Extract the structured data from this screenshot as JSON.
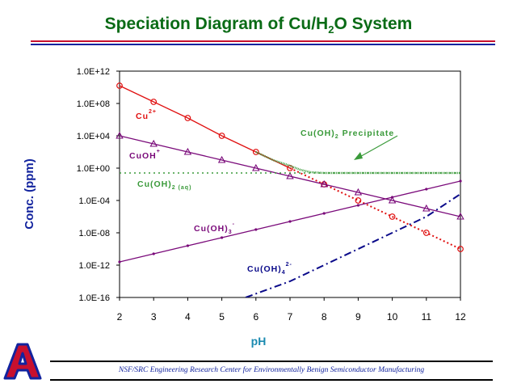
{
  "title": {
    "prefix": "Speciation Diagram of Cu/H",
    "sub": "2",
    "suffix": "O System"
  },
  "footer": "NSF/SRC Engineering Research Center for Environmentally Benign Semiconductor Manufacturing",
  "colors": {
    "title": "#0a6b16",
    "red": "#e01010",
    "purple": "#7a0a7a",
    "green": "#3a9a3a",
    "navy": "#0a0a8a",
    "axis_label": "#12239e"
  },
  "chart_data": {
    "type": "line",
    "xlabel": "pH",
    "ylabel": "Conc. (ppm)",
    "xlim": [
      2,
      12
    ],
    "x_ticks": [
      "2",
      "3",
      "4",
      "5",
      "6",
      "7",
      "8",
      "9",
      "10",
      "11",
      "12"
    ],
    "y_scale": "log",
    "ylim": [
      1e-16,
      1000000000000.0
    ],
    "y_ticks": [
      "1.0E+12",
      "1.0E+08",
      "1.0E+04",
      "1.0E+00",
      "1.0E-04",
      "1.0E-08",
      "1.0E-12",
      "1.0E-16"
    ],
    "grid": false,
    "series": [
      {
        "name": "Cu2+",
        "label": "Cu",
        "label_sup": "2+",
        "color": "#e01010",
        "style": "solid-then-dotted",
        "marker": "circle",
        "x": [
          2,
          3,
          4,
          5,
          6,
          7,
          8,
          9,
          10,
          11,
          12
        ],
        "log10_y": [
          10.2,
          8.2,
          6.2,
          4.0,
          2.0,
          0.0,
          -2.0,
          -4.0,
          -6.0,
          -8.0,
          -10.0
        ]
      },
      {
        "name": "CuOH+",
        "label": "CuOH",
        "label_sup": "+",
        "color": "#7a0a7a",
        "style": "solid",
        "marker": "triangle",
        "x": [
          2,
          3,
          4,
          5,
          6,
          7,
          8,
          9,
          10,
          11,
          12
        ],
        "log10_y": [
          4.0,
          3.0,
          2.0,
          1.0,
          0.0,
          -1.0,
          -2.0,
          -3.0,
          -4.0,
          -5.0,
          -6.0
        ]
      },
      {
        "name": "Cu(OH)2 (aq)",
        "label": "Cu(OH)",
        "label_sub": "2 (aq)",
        "color": "#3a9a3a",
        "style": "dotted",
        "marker": "none",
        "x": [
          2,
          12
        ],
        "log10_y": [
          -0.6,
          -0.6
        ]
      },
      {
        "name": "Cu(OH)3-",
        "label": "Cu(OH)",
        "label_sub": "3",
        "label_sup": "-",
        "color": "#7a0a7a",
        "style": "solid",
        "marker": "dot",
        "x": [
          2,
          3,
          4,
          5,
          6,
          7,
          8,
          9,
          10,
          11,
          12
        ],
        "log10_y": [
          -11.6,
          -10.6,
          -9.6,
          -8.6,
          -7.6,
          -6.6,
          -5.6,
          -4.6,
          -3.6,
          -2.6,
          -1.6
        ]
      },
      {
        "name": "Cu(OH)4 2-",
        "label": "Cu(OH)",
        "label_sub": "4",
        "label_sup": "2-",
        "color": "#0a0a8a",
        "style": "dash-dot",
        "marker": "none",
        "x": [
          5.7,
          7,
          8,
          9,
          10,
          11,
          12
        ],
        "log10_y": [
          -16.0,
          -14.0,
          -12.0,
          -10.0,
          -8.0,
          -6.0,
          -3.2
        ]
      },
      {
        "name": "Cu(OH)2 Precipitate",
        "label": "Cu(OH)",
        "label_sub": "2",
        "label_suffix": "Precipitate",
        "color": "#3a9a3a",
        "style": "solid",
        "marker": "none",
        "x": [
          6,
          6.5,
          7,
          7.3,
          7.6,
          8,
          9,
          10,
          11,
          12
        ],
        "log10_y": [
          2.0,
          1.0,
          0.3,
          -0.2,
          -0.5,
          -0.6,
          -0.6,
          -0.6,
          -0.6,
          -0.6
        ]
      }
    ]
  }
}
